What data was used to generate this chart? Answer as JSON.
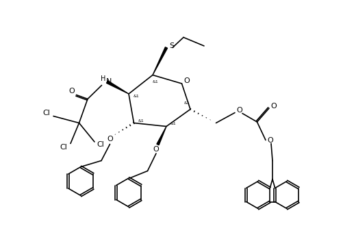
{
  "bg_color": "#ffffff",
  "line_color": "#000000",
  "line_width": 1.2,
  "font_size": 7.5,
  "figsize": [
    5.01,
    3.62
  ],
  "dpi": 100,
  "xlim": [
    0,
    10
  ],
  "ylim": [
    0,
    7.24
  ]
}
